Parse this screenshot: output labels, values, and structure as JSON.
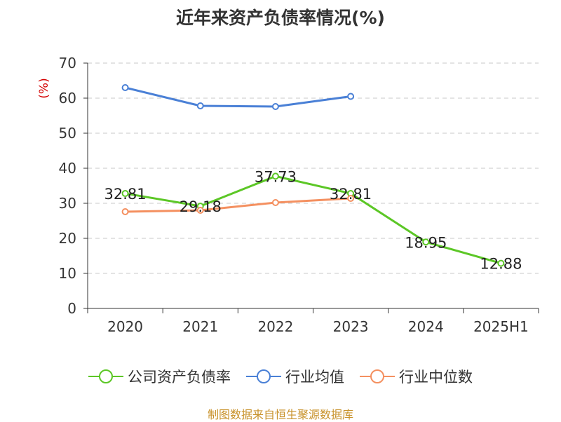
{
  "title": "近年来资产负债率情况(%)",
  "source": "制图数据来自恒生聚源数据库",
  "colors": {
    "company": "#5cc726",
    "industry_avg": "#4a80d6",
    "industry_median": "#f49060",
    "ylabel": "#d40000",
    "axis": "#333333",
    "grid": "#c8c8c8"
  },
  "chart_data": {
    "type": "line",
    "title": "近年来资产负债率情况(%)",
    "ylabel": "(%)",
    "xlabel": "",
    "ylim": [
      0,
      70
    ],
    "yticks": [
      0,
      10,
      20,
      30,
      40,
      50,
      60,
      70
    ],
    "grid": true,
    "legend_position": "bottom",
    "categories": [
      "2020",
      "2021",
      "2022",
      "2023",
      "2024",
      "2025H1"
    ],
    "series": [
      {
        "name": "公司资产负债率",
        "color": "#5cc726",
        "values": [
          32.81,
          29.18,
          37.73,
          32.81,
          18.95,
          12.88
        ],
        "labels": [
          "32.81",
          "29.18",
          "37.73",
          "32.81",
          "18.95",
          "12.88"
        ]
      },
      {
        "name": "行业均值",
        "color": "#4a80d6",
        "values": [
          63.0,
          57.8,
          57.6,
          60.5,
          null,
          null
        ]
      },
      {
        "name": "行业中位数",
        "color": "#f49060",
        "values": [
          27.6,
          28.0,
          30.2,
          31.4,
          null,
          null
        ]
      }
    ]
  }
}
